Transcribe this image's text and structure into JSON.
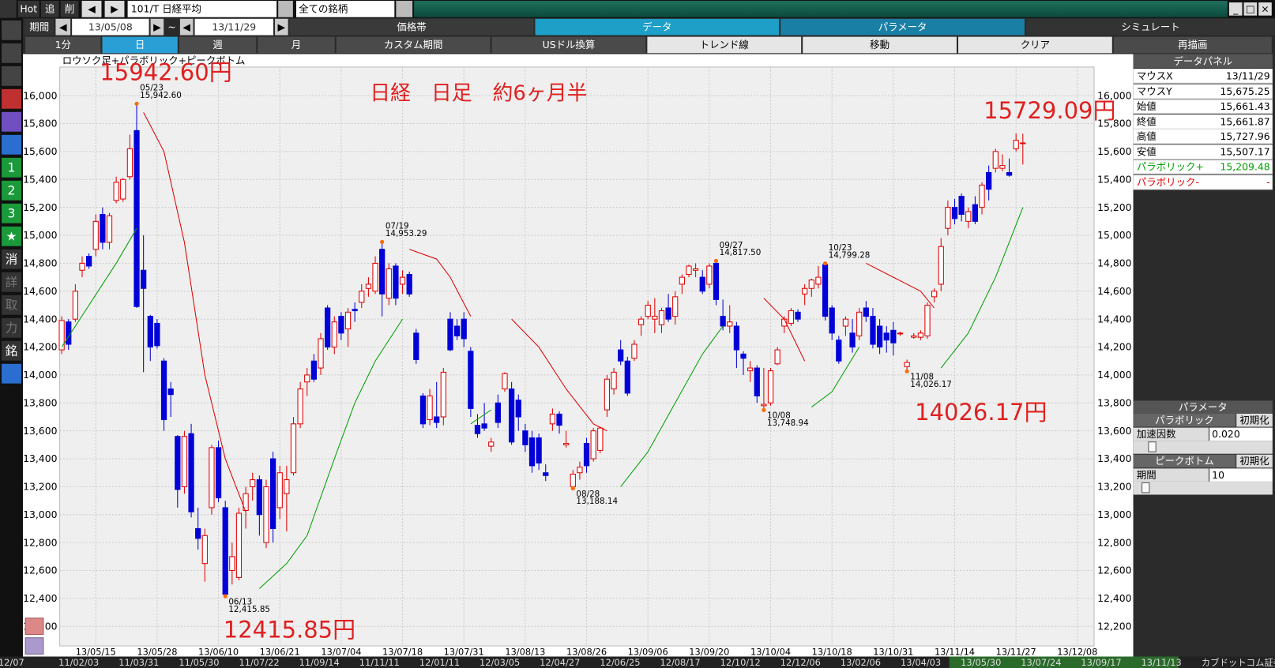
{
  "toolbar": {
    "hot": "Hot",
    "buttons": [
      "追",
      "削"
    ],
    "symbol": "101/T 日経平均",
    "universe": "全ての銘柄"
  },
  "period": {
    "label": "期間",
    "from": "13/05/08",
    "sep": "~",
    "to": "13/11/29"
  },
  "tabs": [
    "価格帯",
    "データ",
    "パラメータ",
    "シミュレート"
  ],
  "buttons": [
    "1分",
    "日",
    "週",
    "月",
    "カスタム期間",
    "USドル換算",
    "トレンド線",
    "移動",
    "クリア",
    "再描画"
  ],
  "sidebar": [
    "1",
    "2",
    "3",
    "★",
    "消",
    "詳",
    "取",
    "力",
    "銘"
  ],
  "chart_data": {
    "type": "candlestick",
    "title": "ロウソク足+パラボリック+ピークボトム",
    "up_color": "#e00000",
    "down_color": "#0000d8",
    "ylim": [
      12060,
      16205
    ],
    "yticks": [
      {
        "value": 12200,
        "label": "12,200"
      },
      {
        "value": 12400,
        "label": "12,400"
      },
      {
        "value": 12600,
        "label": "12,600"
      },
      {
        "value": 12800,
        "label": "12,800"
      },
      {
        "value": 13000,
        "label": "13,000"
      },
      {
        "value": 13200,
        "label": "13,200"
      },
      {
        "value": 13400,
        "label": "13,400"
      },
      {
        "value": 13600,
        "label": "13,600"
      },
      {
        "value": 13800,
        "label": "13,800"
      },
      {
        "value": 14000,
        "label": "14,000"
      },
      {
        "value": 14200,
        "label": "14,200"
      },
      {
        "value": 14400,
        "label": "14,400"
      },
      {
        "value": 14600,
        "label": "14,600"
      },
      {
        "value": 14800,
        "label": "14,800"
      },
      {
        "value": 15000,
        "label": "15,000"
      },
      {
        "value": 15200,
        "label": "15,200"
      },
      {
        "value": 15400,
        "label": "15,400"
      },
      {
        "value": 15600,
        "label": "15,600"
      },
      {
        "value": 15800,
        "label": "15,800"
      },
      {
        "value": 16000,
        "label": "16,000"
      }
    ],
    "x_labels": [
      "13/05/15",
      "13/05/28",
      "13/06/10",
      "13/06/21",
      "13/07/04",
      "13/07/18",
      "13/07/31",
      "13/08/13",
      "13/08/26",
      "13/09/06",
      "13/09/20",
      "13/10/04",
      "13/10/18",
      "13/10/31",
      "13/11/14",
      "13/11/27",
      "13/12/08"
    ],
    "candles": [
      [
        14180,
        14420,
        14150,
        14390
      ],
      [
        14380,
        14400,
        14180,
        14220
      ],
      [
        14400,
        14650,
        14380,
        14600
      ],
      [
        14750,
        14850,
        14700,
        14800
      ],
      [
        14850,
        14870,
        14760,
        14780
      ],
      [
        14900,
        15150,
        14850,
        15100
      ],
      [
        15150,
        15200,
        14900,
        14950
      ],
      [
        14950,
        15160,
        14900,
        15140
      ],
      [
        15250,
        15420,
        15230,
        15380
      ],
      [
        15260,
        15410,
        15240,
        15400
      ],
      [
        15420,
        15720,
        15400,
        15620
      ],
      [
        15750,
        15942.6,
        14480,
        14490
      ],
      [
        14750,
        15000,
        14020,
        14620
      ],
      [
        14420,
        14430,
        14100,
        14200
      ],
      [
        14370,
        14400,
        14190,
        14210
      ],
      [
        14100,
        14120,
        13600,
        13680
      ],
      [
        13900,
        13950,
        13700,
        13860
      ],
      [
        13560,
        13570,
        13050,
        13180
      ],
      [
        13200,
        13600,
        13150,
        13560
      ],
      [
        13580,
        13650,
        12980,
        13020
      ],
      [
        12900,
        13050,
        12750,
        12830
      ],
      [
        12650,
        12900,
        12520,
        12850
      ],
      [
        13050,
        13500,
        13000,
        13480
      ],
      [
        13480,
        13530,
        13090,
        13120
      ],
      [
        13050,
        13100,
        12415.85,
        12430
      ],
      [
        12600,
        12800,
        12500,
        12700
      ],
      [
        12550,
        13050,
        12530,
        13010
      ],
      [
        13030,
        13200,
        12900,
        13150
      ],
      [
        13200,
        13300,
        13100,
        13250
      ],
      [
        13250,
        13280,
        12850,
        13000
      ],
      [
        12800,
        13250,
        12760,
        13200
      ],
      [
        13400,
        13450,
        12800,
        12900
      ],
      [
        13050,
        13350,
        12970,
        13300
      ],
      [
        13150,
        13350,
        12880,
        13250
      ],
      [
        13300,
        13700,
        13280,
        13650
      ],
      [
        13650,
        13950,
        13620,
        13900
      ],
      [
        13950,
        14050,
        13850,
        14000
      ],
      [
        14100,
        14150,
        13950,
        13970
      ],
      [
        14050,
        14300,
        14000,
        14260
      ],
      [
        14480,
        14500,
        14180,
        14200
      ],
      [
        14200,
        14420,
        14150,
        14380
      ],
      [
        14420,
        14450,
        14250,
        14300
      ],
      [
        14330,
        14480,
        14200,
        14450
      ],
      [
        14470,
        14520,
        14380,
        14460
      ],
      [
        14520,
        14650,
        14480,
        14600
      ],
      [
        14620,
        14700,
        14560,
        14650
      ],
      [
        14600,
        14850,
        14580,
        14800
      ],
      [
        14900,
        14953.29,
        14420,
        14580
      ],
      [
        14550,
        14800,
        14500,
        14760
      ],
      [
        14780,
        14800,
        14500,
        14550
      ],
      [
        14650,
        14750,
        14580,
        14700
      ],
      [
        14720,
        14740,
        14560,
        14580
      ],
      [
        14300,
        14330,
        14080,
        14110
      ],
      [
        13850,
        13870,
        13620,
        13650
      ],
      [
        13680,
        13900,
        13640,
        13850
      ],
      [
        13700,
        13950,
        13620,
        13660
      ],
      [
        13700,
        14050,
        13640,
        14020
      ],
      [
        14400,
        14450,
        14170,
        14180
      ],
      [
        14350,
        14400,
        14250,
        14280
      ],
      [
        14400,
        14450,
        14200,
        14260
      ],
      [
        14170,
        14200,
        13700,
        13760
      ],
      [
        13640,
        13720,
        13550,
        13580
      ],
      [
        13650,
        13800,
        13600,
        13620
      ],
      [
        13490,
        13550,
        13450,
        13520
      ],
      [
        13800,
        13860,
        13620,
        13660
      ],
      [
        13900,
        14020,
        13880,
        14010
      ],
      [
        13900,
        13950,
        13500,
        13520
      ],
      [
        13820,
        13860,
        13600,
        13700
      ],
      [
        13600,
        13650,
        13450,
        13500
      ],
      [
        13550,
        13600,
        13300,
        13350
      ],
      [
        13550,
        13580,
        13320,
        13370
      ],
      [
        13300,
        13360,
        13240,
        13280
      ],
      [
        13650,
        13760,
        13600,
        13720
      ],
      [
        13720,
        13740,
        13580,
        13640
      ],
      [
        13500,
        13600,
        13480,
        13510
      ],
      [
        13200,
        13320,
        13188.14,
        13290
      ],
      [
        13300,
        13380,
        13250,
        13340
      ],
      [
        13510,
        13550,
        13300,
        13350
      ],
      [
        13400,
        13620,
        13380,
        13600
      ],
      [
        13460,
        13630,
        13440,
        13620
      ],
      [
        13750,
        14000,
        13700,
        13970
      ],
      [
        13900,
        14050,
        13860,
        14020
      ],
      [
        14180,
        14250,
        14070,
        14100
      ],
      [
        14100,
        14130,
        13850,
        13870
      ],
      [
        14120,
        14250,
        14100,
        14220
      ],
      [
        14360,
        14420,
        14280,
        14400
      ],
      [
        14420,
        14530,
        14400,
        14500
      ],
      [
        14400,
        14550,
        14300,
        14420
      ],
      [
        14360,
        14480,
        14300,
        14460
      ],
      [
        14480,
        14580,
        14380,
        14400
      ],
      [
        14420,
        14600,
        14360,
        14560
      ],
      [
        14650,
        14720,
        14580,
        14700
      ],
      [
        14720,
        14790,
        14700,
        14780
      ],
      [
        14750,
        14800,
        14700,
        14760
      ],
      [
        14700,
        14750,
        14580,
        14600
      ],
      [
        14650,
        14800,
        14620,
        14780
      ],
      [
        14800,
        14817.5,
        14500,
        14540
      ],
      [
        14420,
        14540,
        14320,
        14350
      ],
      [
        14350,
        14500,
        14300,
        14380
      ],
      [
        14350,
        14380,
        14050,
        14180
      ],
      [
        14150,
        14170,
        14000,
        14120
      ],
      [
        14030,
        14100,
        13950,
        14050
      ],
      [
        14050,
        14070,
        13800,
        13850
      ],
      [
        13780,
        14050,
        13748.94,
        13790
      ],
      [
        13800,
        14050,
        13780,
        14030
      ],
      [
        14080,
        14200,
        14070,
        14180
      ],
      [
        14350,
        14420,
        14300,
        14400
      ],
      [
        14370,
        14480,
        14350,
        14460
      ],
      [
        14450,
        14470,
        14380,
        14400
      ],
      [
        14580,
        14650,
        14500,
        14620
      ],
      [
        14620,
        14690,
        14560,
        14680
      ],
      [
        14650,
        14780,
        14620,
        14700
      ],
      [
        14790,
        14799.28,
        14390,
        14420
      ],
      [
        14480,
        14500,
        14250,
        14300
      ],
      [
        14250,
        14280,
        14080,
        14100
      ],
      [
        14350,
        14420,
        14280,
        14400
      ],
      [
        14300,
        14400,
        14160,
        14200
      ],
      [
        14280,
        14480,
        14250,
        14450
      ],
      [
        14480,
        14530,
        14380,
        14420
      ],
      [
        14420,
        14480,
        14190,
        14220
      ],
      [
        14350,
        14400,
        14150,
        14200
      ],
      [
        14300,
        14350,
        14160,
        14250
      ],
      [
        14320,
        14380,
        14140,
        14230
      ],
      [
        14300,
        14310,
        14280,
        14300
      ],
      [
        14060,
        14110,
        14026.17,
        14090
      ],
      [
        14270,
        14300,
        14260,
        14280
      ],
      [
        14270,
        14320,
        14250,
        14300
      ],
      [
        14280,
        14520,
        14260,
        14500
      ],
      [
        14560,
        14620,
        14520,
        14600
      ],
      [
        14650,
        14980,
        14600,
        14920
      ],
      [
        15050,
        15250,
        15000,
        15200
      ],
      [
        15200,
        15260,
        15080,
        15120
      ],
      [
        15280,
        15300,
        15100,
        15150
      ],
      [
        15100,
        15200,
        15050,
        15170
      ],
      [
        15220,
        15280,
        15080,
        15100
      ],
      [
        15200,
        15380,
        15150,
        15360
      ],
      [
        15450,
        15500,
        15250,
        15330
      ],
      [
        15480,
        15620,
        15450,
        15600
      ],
      [
        15480,
        15580,
        15460,
        15500
      ],
      [
        15450,
        15550,
        15420,
        15430
      ],
      [
        15620,
        15729.09,
        15600,
        15680
      ],
      [
        15661.43,
        15727.96,
        15507.17,
        15661.87
      ]
    ],
    "sar": [
      {
        "color": "#00a000",
        "x": [
          0,
          4,
          8,
          11
        ],
        "values": [
          14200,
          14500,
          14800,
          15050
        ]
      },
      {
        "color": "#e00000",
        "x": [
          12,
          15,
          18,
          21,
          24,
          27
        ],
        "values": [
          15880,
          15600,
          14950,
          14000,
          13400,
          13020
        ]
      },
      {
        "color": "#00a000",
        "x": [
          29,
          33,
          36,
          40,
          43,
          46,
          50
        ],
        "values": [
          12470,
          12650,
          12850,
          13400,
          13800,
          14100,
          14400
        ]
      },
      {
        "color": "#e00000",
        "x": [
          51,
          55,
          57,
          60
        ],
        "values": [
          14900,
          14830,
          14700,
          14420
        ]
      },
      {
        "color": "#00a000",
        "x": [
          60,
          63
        ],
        "values": [
          13650,
          13750
        ]
      },
      {
        "color": "#e00000",
        "x": [
          66,
          70,
          74,
          78,
          80
        ],
        "values": [
          14400,
          14200,
          13900,
          13650,
          13600
        ]
      },
      {
        "color": "#00a000",
        "x": [
          82,
          86,
          90,
          94,
          97
        ],
        "values": [
          13200,
          13450,
          13800,
          14150,
          14350
        ]
      },
      {
        "color": "#e00000",
        "x": [
          103,
          106,
          109
        ],
        "values": [
          14550,
          14400,
          14100
        ]
      },
      {
        "color": "#00a000",
        "x": [
          110,
          113,
          117
        ],
        "values": [
          13770,
          13880,
          14200
        ]
      },
      {
        "color": "#e00000",
        "x": [
          118,
          122,
          126,
          128
        ],
        "values": [
          14800,
          14700,
          14600,
          14480
        ]
      },
      {
        "color": "#00a000",
        "x": [
          129,
          133,
          137,
          141
        ],
        "values": [
          14050,
          14300,
          14700,
          15200
        ]
      }
    ],
    "peaks": [
      {
        "date": "05/23",
        "price": {
          "value": 15942.6,
          "label": "15,942.60"
        }
      },
      {
        "date": "06/13",
        "price": {
          "value": 12415.85,
          "label": "12,415.85"
        }
      },
      {
        "date": "07/19",
        "price": {
          "value": 14953.29,
          "label": "14,953.29"
        }
      },
      {
        "date": "08/28",
        "price": {
          "value": 13188.14,
          "label": "13,188.14"
        }
      },
      {
        "date": "09/27",
        "price": {
          "value": 14817.5,
          "label": "14,817.50"
        }
      },
      {
        "date": "10/08",
        "price": {
          "value": 13748.94,
          "label": "13,748.94"
        }
      },
      {
        "date": "10/23",
        "price": {
          "value": 14799.28,
          "label": "14,799.28"
        }
      },
      {
        "date": "11/08",
        "price": {
          "value": 14026.17,
          "label": "14,026.17"
        }
      }
    ],
    "annotations": [
      "15942.60円",
      "日経　日足　約6ヶ月半",
      "15729.09円",
      "12415.85円",
      "14026.17円"
    ]
  },
  "data_panel": {
    "title": "データパネル",
    "rows": [
      [
        "マウスX",
        "13/11/29"
      ],
      [
        "マウスY",
        "15,675.25"
      ],
      [
        "始値",
        "15,661.43"
      ],
      [
        "終値",
        "15,661.87"
      ],
      [
        "高値",
        "15,727.96"
      ],
      [
        "安値",
        "15,507.17"
      ],
      [
        "パラボリック+",
        "15,209.48"
      ],
      [
        "パラボリック-",
        "-"
      ]
    ]
  },
  "param_panel": {
    "title": "パラメータ",
    "groups": [
      {
        "name": "パラボリック",
        "reset": "初期化",
        "field": "加速因数",
        "value": "0.020"
      },
      {
        "name": "ピークボトム",
        "reset": "初期化",
        "field": "期間",
        "value": "10"
      }
    ]
  },
  "timeline": [
    "12/07",
    "11/02/03",
    "11/03/31",
    "11/05/30",
    "11/07/22",
    "11/09/14",
    "11/11/11",
    "12/01/11",
    "12/03/05",
    "12/04/27",
    "12/06/25",
    "12/08/17",
    "12/10/12",
    "12/12/06",
    "13/02/06",
    "13/04/03",
    "13/05/30",
    "13/07/24",
    "13/09/17",
    "13/11/13",
    "カブドットコム証券"
  ]
}
